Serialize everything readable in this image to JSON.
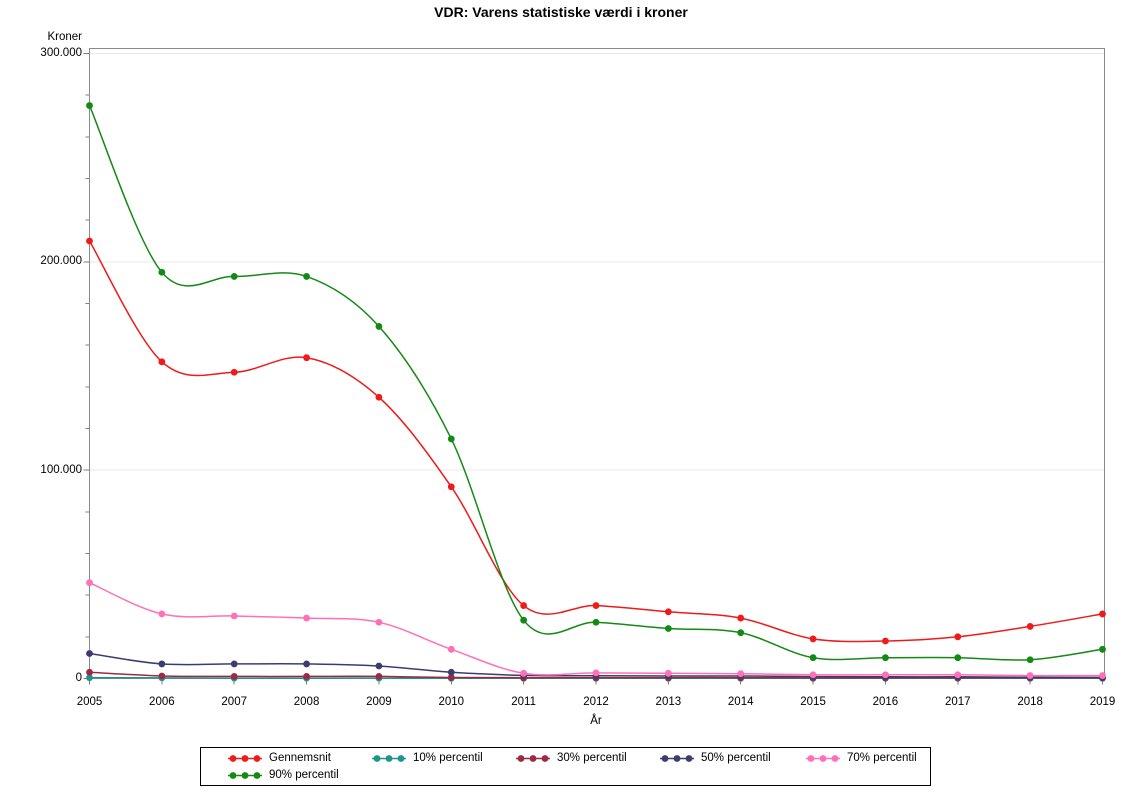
{
  "chart_data": {
    "type": "line",
    "title": "VDR: Varens statistiske værdi i kroner",
    "grid": "horizontal-major",
    "frame_color": "#8a8a8a",
    "gridline_color": "#e8e8e8",
    "tick_color": "#7d7d7d",
    "y_axis": {
      "label": "Kroner",
      "min": 0,
      "max": 300000,
      "ticks": [
        0,
        100000,
        200000,
        300000
      ],
      "tick_labels": [
        "0",
        "100.000",
        "200.000",
        "300.000"
      ],
      "minor_tick_step": 20000
    },
    "x_axis": {
      "label": "År",
      "ticks": [
        2005,
        2006,
        2007,
        2008,
        2009,
        2010,
        2011,
        2012,
        2013,
        2014,
        2015,
        2016,
        2017,
        2018,
        2019
      ]
    },
    "legend": {
      "position": "bottom",
      "row_break": 5
    },
    "series": [
      {
        "name": "Gennemsnit",
        "color": "#ee1b1b",
        "values": [
          210000,
          152000,
          147000,
          154000,
          135000,
          92000,
          35000,
          35000,
          32000,
          29000,
          19000,
          18000,
          20000,
          25000,
          31000
        ]
      },
      {
        "name": "10% percentil",
        "color": "#1d948c",
        "values": [
          400,
          300,
          200,
          200,
          200,
          100,
          100,
          100,
          100,
          100,
          100,
          100,
          100,
          100,
          100
        ]
      },
      {
        "name": "30% percentil",
        "color": "#9c2a42",
        "values": [
          3000,
          1200,
          1000,
          1000,
          1000,
          500,
          400,
          400,
          400,
          400,
          300,
          300,
          300,
          300,
          300
        ]
      },
      {
        "name": "50% percentil",
        "color": "#3c3c70",
        "values": [
          12000,
          7000,
          7000,
          7000,
          6000,
          3000,
          1500,
          1300,
          1200,
          1200,
          900,
          800,
          800,
          600,
          500
        ]
      },
      {
        "name": "70% percentil",
        "color": "#ff70b8",
        "values": [
          46000,
          31000,
          30000,
          29000,
          27000,
          14000,
          2500,
          2700,
          2500,
          2300,
          1800,
          1800,
          1800,
          1400,
          1400
        ]
      },
      {
        "name": "90% percentil",
        "color": "#148a14",
        "values": [
          275000,
          195000,
          193000,
          193000,
          169000,
          115000,
          28000,
          27000,
          24000,
          22000,
          10000,
          10000,
          10000,
          9000,
          14000
        ]
      }
    ]
  }
}
